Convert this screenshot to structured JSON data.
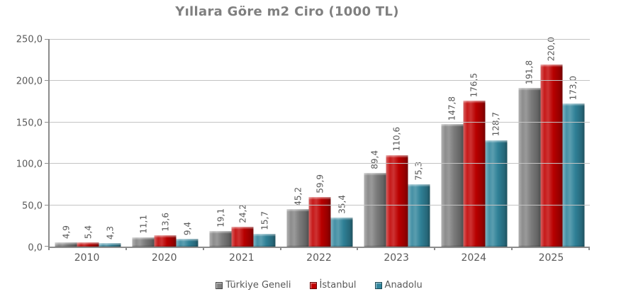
{
  "title": "Yıllara Göre m2 Ciro (1000 TL)",
  "chart_data": {
    "type": "bar",
    "title": "Yıllara Göre m2 Ciro (1000 TL)",
    "categories": [
      "2010",
      "2020",
      "2021",
      "2022",
      "2023",
      "2024",
      "2025"
    ],
    "series": [
      {
        "name": "Türkiye Geneli",
        "color": "#808080",
        "values": [
          4.9,
          11.1,
          19.1,
          45.2,
          89.4,
          147.8,
          191.8
        ],
        "labels": [
          "4,9",
          "11,1",
          "19,1",
          "45,2",
          "89,4",
          "147,8",
          "191,8"
        ]
      },
      {
        "name": "İstanbul",
        "color": "#C00000",
        "values": [
          5.4,
          13.6,
          24.2,
          59.9,
          110.6,
          176.5,
          220.0
        ],
        "labels": [
          "5,4",
          "13,6",
          "24,2",
          "59,9",
          "110,6",
          "176,5",
          "220,0"
        ]
      },
      {
        "name": "Anadolu",
        "color": "#31859C",
        "values": [
          4.3,
          9.4,
          15.7,
          35.4,
          75.3,
          128.7,
          173.0
        ],
        "labels": [
          "4,3",
          "9,4",
          "15,7",
          "35,4",
          "75,3",
          "128,7",
          "173,0"
        ]
      }
    ],
    "xlabel": "",
    "ylabel": "",
    "ylim": [
      0,
      250
    ],
    "ytick_step": 50,
    "yticks": [
      0,
      50,
      100,
      150,
      200,
      250
    ],
    "ytick_labels": [
      "0,0",
      "50,0",
      "100,0",
      "150,0",
      "200,0",
      "250,0"
    ],
    "grid": true,
    "legend_position": "bottom",
    "text_color": "#595959",
    "title_color": "#7f7f7f",
    "gridline_color": "#c3c3c3",
    "axis_color": "#8c8c8c"
  }
}
